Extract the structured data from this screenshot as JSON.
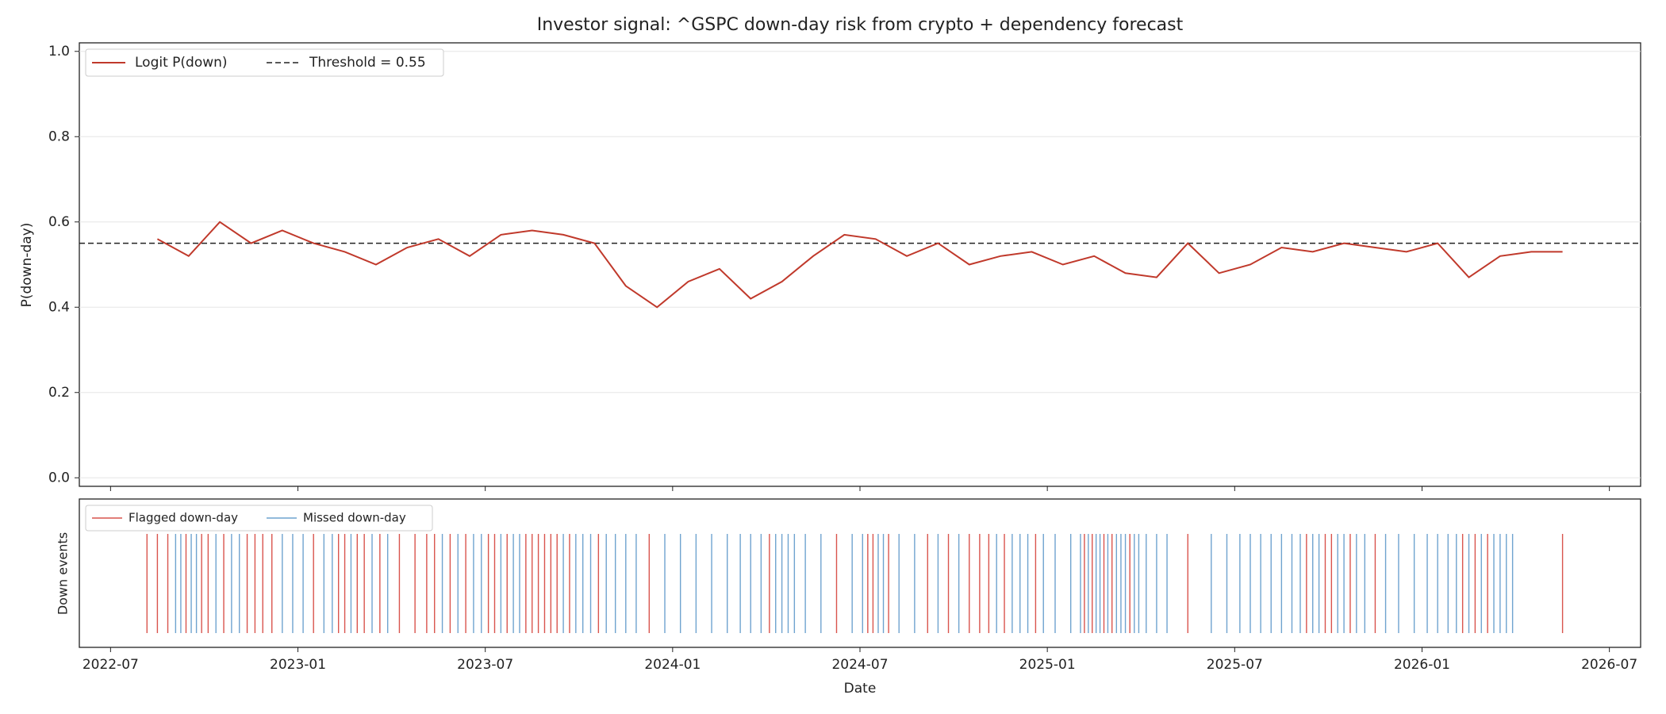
{
  "chart_data": [
    {
      "type": "line",
      "title": "Investor signal: ^GSPC down-day risk from crypto + dependency forecast",
      "y_label": "P(down-day)",
      "x": [
        "2022-08",
        "2022-09",
        "2022-10",
        "2022-11",
        "2022-12",
        "2023-01",
        "2023-02",
        "2023-03",
        "2023-04",
        "2023-05",
        "2023-06",
        "2023-07",
        "2023-08",
        "2023-09",
        "2023-10",
        "2023-11",
        "2023-12",
        "2024-01",
        "2024-02",
        "2024-03",
        "2024-04",
        "2024-05",
        "2024-06",
        "2024-07",
        "2024-08",
        "2024-09",
        "2024-10",
        "2024-11",
        "2024-12",
        "2025-01",
        "2025-02",
        "2025-03",
        "2025-04",
        "2025-05",
        "2025-06",
        "2025-07",
        "2025-08",
        "2025-09",
        "2025-10",
        "2025-11",
        "2025-12",
        "2026-01",
        "2026-02",
        "2026-03",
        "2026-04",
        "2026-05"
      ],
      "series": [
        {
          "name": "Logit P(down)",
          "color": "#c0392b",
          "values": [
            0.56,
            0.52,
            0.6,
            0.55,
            0.58,
            0.55,
            0.53,
            0.5,
            0.54,
            0.56,
            0.52,
            0.57,
            0.58,
            0.57,
            0.55,
            0.45,
            0.4,
            0.46,
            0.49,
            0.42,
            0.46,
            0.52,
            0.57,
            0.56,
            0.52,
            0.55,
            0.5,
            0.52,
            0.53,
            0.5,
            0.52,
            0.48,
            0.47,
            0.55,
            0.48,
            0.5,
            0.54,
            0.53,
            0.55,
            0.54,
            0.53,
            0.55,
            0.47,
            0.52,
            0.53,
            0.53
          ]
        }
      ],
      "threshold": {
        "name": "Threshold = 0.55",
        "value": 0.55,
        "color": "#222222"
      },
      "ylim": [
        -0.02,
        1.02
      ],
      "yticks": [
        {
          "value": 0,
          "label": "0.0"
        },
        0.2,
        0.4,
        0.6,
        0.8,
        {
          "value": 1,
          "label": "1.0"
        }
      ],
      "grid": true,
      "legend": "upper left"
    },
    {
      "type": "event",
      "x_label": "Date",
      "y_label": "Down events",
      "xlim": [
        "2022-06",
        "2026-08"
      ],
      "xticks": [
        "2022-07",
        "2023-01",
        "2023-07",
        "2024-01",
        "2024-07",
        "2025-01",
        "2025-07",
        "2026-01",
        "2026-07"
      ],
      "legend": "upper left",
      "series": [
        {
          "name": "Flagged down-day",
          "color": "#d9544d",
          "x": [
            "2022-08",
            "2022-08",
            "2022-08",
            "2022-09",
            "2022-09",
            "2022-10",
            "2022-10",
            "2022-11",
            "2022-11",
            "2022-11",
            "2022-12",
            "2023-01",
            "2023-02",
            "2023-02",
            "2023-02",
            "2023-03",
            "2023-03",
            "2023-04",
            "2023-04",
            "2023-05",
            "2023-05",
            "2023-05",
            "2023-06",
            "2023-07",
            "2023-07",
            "2023-07",
            "2023-08",
            "2023-08",
            "2023-08",
            "2023-08",
            "2023-09",
            "2023-09",
            "2023-09",
            "2023-10",
            "2023-12",
            "2024-04",
            "2024-06",
            "2024-07",
            "2024-07",
            "2024-07",
            "2024-09",
            "2024-09",
            "2024-10",
            "2024-10",
            "2024-11",
            "2024-11",
            "2024-12",
            "2025-02",
            "2025-02",
            "2025-02",
            "2025-03",
            "2025-03",
            "2025-05",
            "2025-09",
            "2025-09",
            "2025-10",
            "2025-10",
            "2025-11",
            "2026-02",
            "2026-02",
            "2026-03",
            "2026-05"
          ]
        },
        {
          "name": "Missed down-day",
          "color": "#6fa3cf",
          "x": [
            "2022-09",
            "2022-09",
            "2022-09",
            "2022-09",
            "2022-10",
            "2022-10",
            "2022-11",
            "2022-12",
            "2022-12",
            "2023-01",
            "2023-01",
            "2023-02",
            "2023-02",
            "2023-03",
            "2023-03",
            "2023-05",
            "2023-06",
            "2023-06",
            "2023-06",
            "2023-07",
            "2023-07",
            "2023-08",
            "2023-09",
            "2023-09",
            "2023-10",
            "2023-10",
            "2023-10",
            "2023-11",
            "2023-11",
            "2023-11",
            "2023-12",
            "2024-01",
            "2024-01",
            "2024-02",
            "2024-02",
            "2024-03",
            "2024-03",
            "2024-03",
            "2024-04",
            "2024-04",
            "2024-04",
            "2024-04",
            "2024-05",
            "2024-05",
            "2024-06",
            "2024-07",
            "2024-07",
            "2024-07",
            "2024-08",
            "2024-08",
            "2024-09",
            "2024-10",
            "2024-11",
            "2024-11",
            "2024-12",
            "2024-12",
            "2024-12",
            "2025-01",
            "2025-01",
            "2025-02",
            "2025-02",
            "2025-02",
            "2025-02",
            "2025-02",
            "2025-03",
            "2025-03",
            "2025-03",
            "2025-03",
            "2025-03",
            "2025-04",
            "2025-04",
            "2025-04",
            "2025-06",
            "2025-06",
            "2025-07",
            "2025-07",
            "2025-07",
            "2025-08",
            "2025-08",
            "2025-08",
            "2025-09",
            "2025-09",
            "2025-09",
            "2025-10",
            "2025-10",
            "2025-10",
            "2025-11",
            "2025-11",
            "2025-12",
            "2025-12",
            "2026-01",
            "2026-01",
            "2026-01",
            "2026-02",
            "2026-02",
            "2026-02",
            "2026-03",
            "2026-03",
            "2026-03",
            "2026-03"
          ]
        }
      ]
    }
  ]
}
